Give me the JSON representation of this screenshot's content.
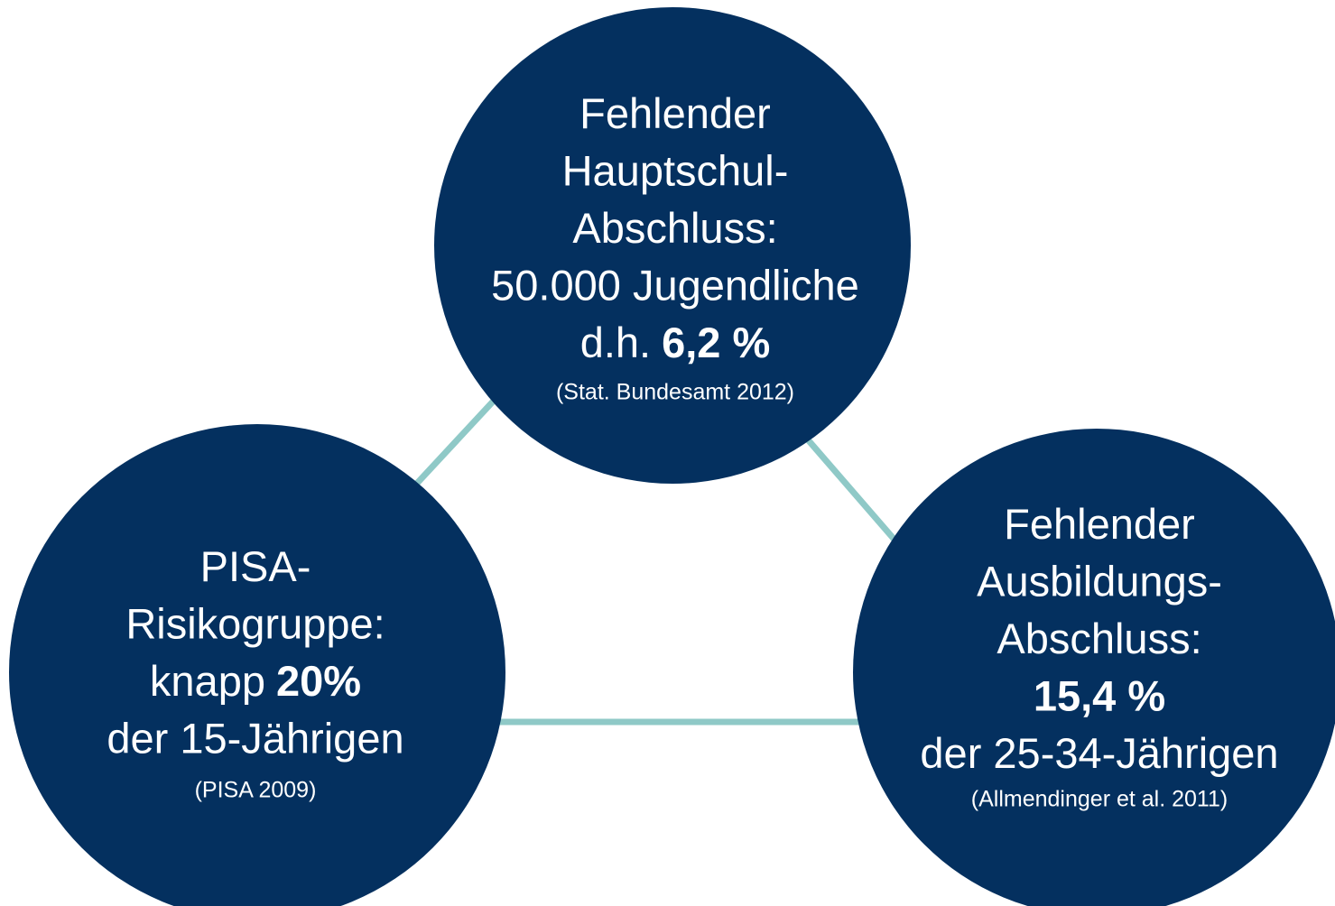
{
  "nodes": [
    {
      "lines": [
        {
          "text": "Fehlender"
        },
        {
          "text": "Hauptschul-"
        },
        {
          "text": "Abschluss:"
        },
        {
          "text": "50.000 Jugendliche"
        },
        {
          "text": "d.h.",
          "strong": "6,2 %"
        }
      ],
      "source": "(Stat. Bundesamt 2012)"
    },
    {
      "lines": [
        {
          "text": "PISA-"
        },
        {
          "text": "Risikogruppe:"
        },
        {
          "text": "knapp",
          "strong": "20%"
        },
        {
          "text": "der 15-Jährigen"
        }
      ],
      "source": "(PISA 2009)"
    },
    {
      "lines": [
        {
          "text": "Fehlender"
        },
        {
          "text": "Ausbildungs-"
        },
        {
          "text": "Abschluss:"
        },
        {
          "strong": "15,4 %"
        },
        {
          "text": "der 25-34-Jährigen"
        }
      ],
      "source": "(Allmendinger et al. 2011)"
    }
  ]
}
